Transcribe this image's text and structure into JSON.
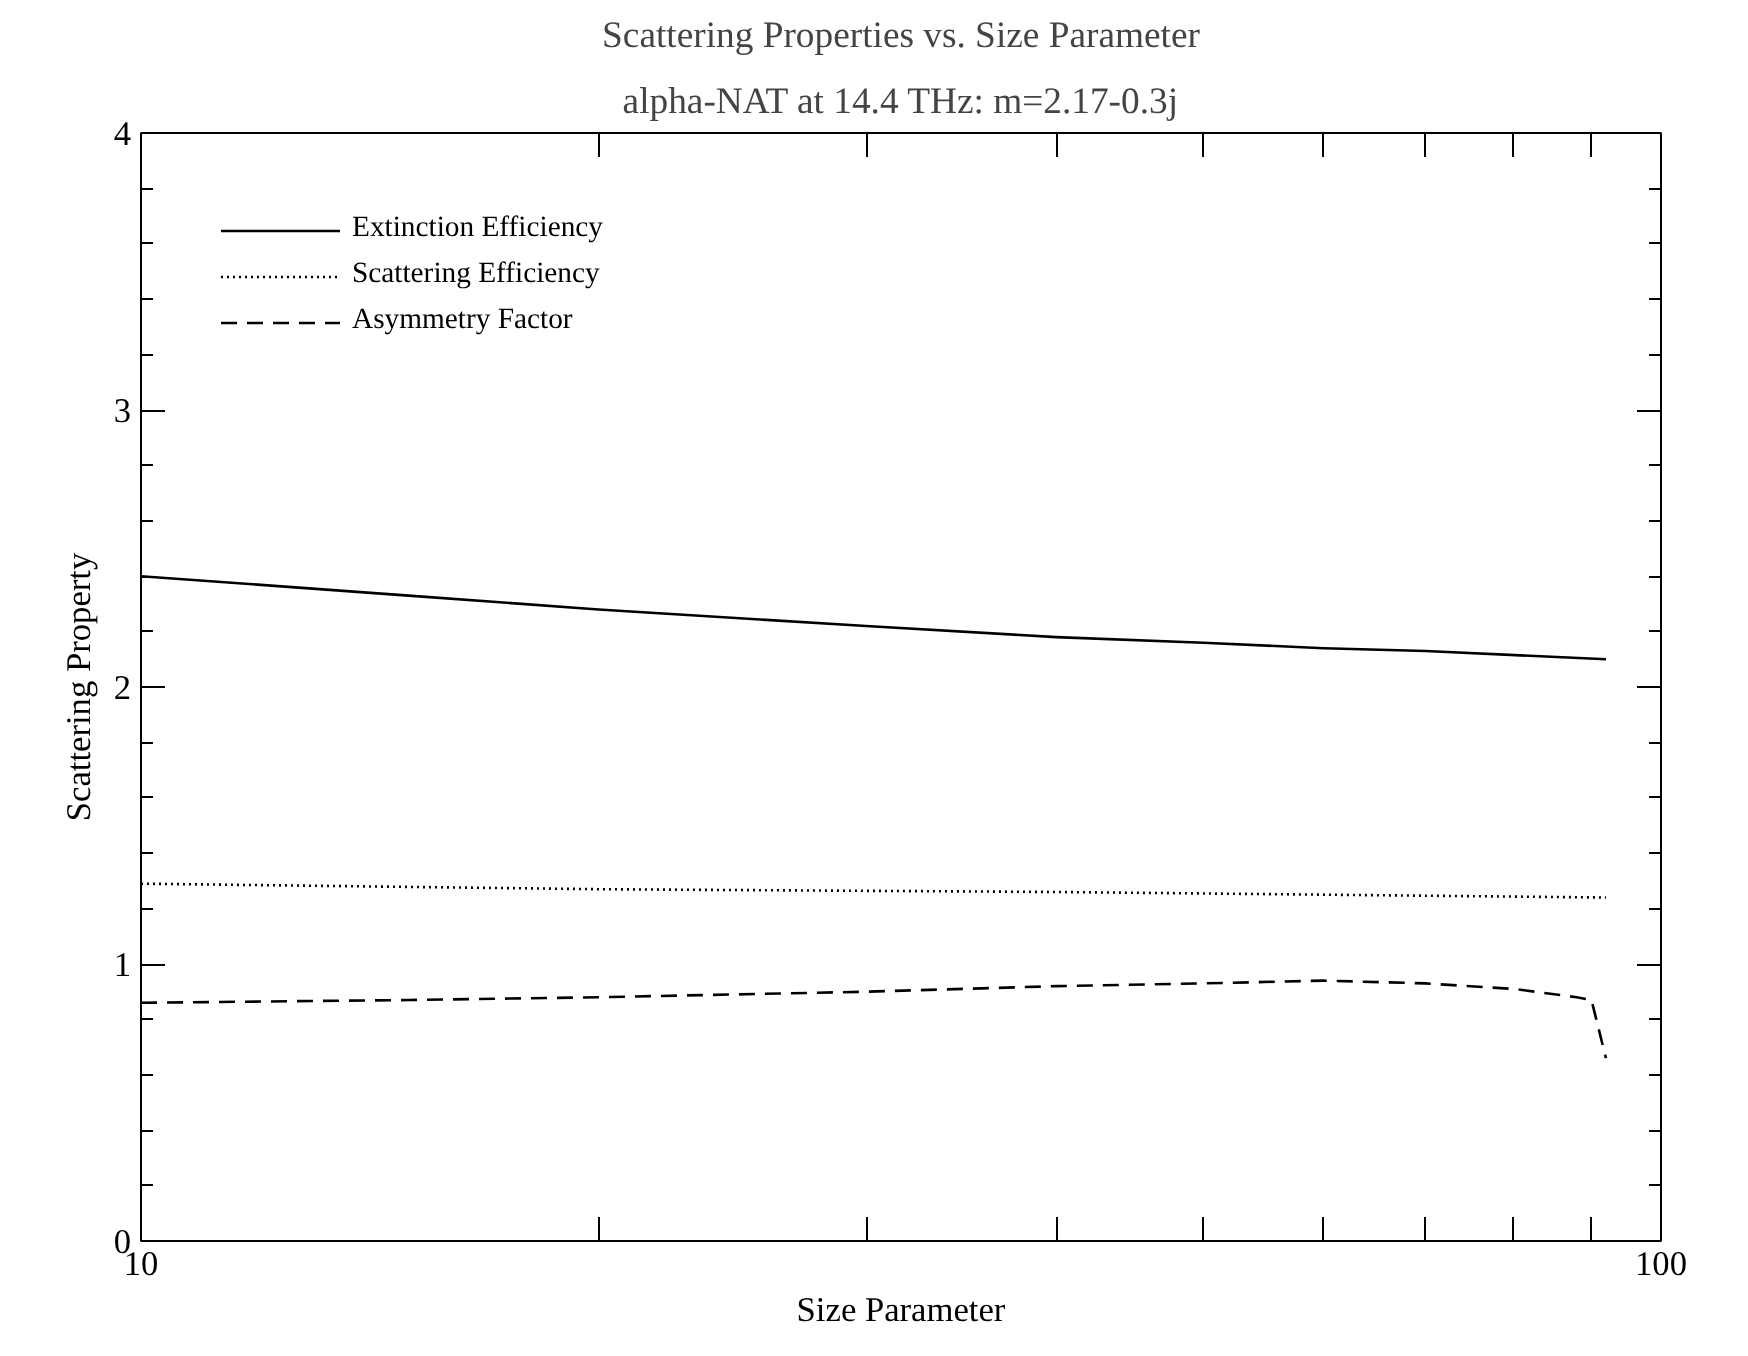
{
  "chart_data": {
    "type": "line",
    "title": "Scattering Properties vs. Size Parameter",
    "subtitle": "alpha-NAT at 14.4 THz: m=2.17-0.3j",
    "xlabel": "Size Parameter",
    "ylabel": "Scattering Property",
    "log": "x",
    "xlim": [
      10,
      100
    ],
    "ylim": [
      0,
      4
    ],
    "xticks": [
      10,
      {
        "value": 20,
        "label": null
      },
      {
        "value": 30,
        "label": null
      },
      {
        "value": 40,
        "label": null
      },
      {
        "value": 50,
        "label": null
      },
      {
        "value": 60,
        "label": null
      },
      {
        "value": 70,
        "label": null
      },
      {
        "value": 80,
        "label": null
      },
      {
        "value": 90,
        "label": null
      },
      100
    ],
    "yticks": [
      0,
      1,
      2,
      3,
      4
    ],
    "grid": false,
    "legend": "top left",
    "marker": "none",
    "series": [
      {
        "name": "Extinction Efficiency",
        "color": "#000000",
        "line_style": "solid",
        "x": [
          10,
          15,
          20,
          30,
          40,
          50,
          60,
          70,
          92
        ],
        "values": [
          2.4,
          2.33,
          2.28,
          2.22,
          2.18,
          2.16,
          2.14,
          2.13,
          2.1
        ]
      },
      {
        "name": "Scattering Efficiency",
        "color": "#000000",
        "line_style": "dotted",
        "x": [
          10,
          20,
          40,
          92
        ],
        "values": [
          1.29,
          1.27,
          1.26,
          1.24
        ]
      },
      {
        "name": "Asymmetry Factor",
        "color": "#000000",
        "line_style": "dashed",
        "x": [
          10,
          15,
          20,
          30,
          40,
          50,
          60,
          70,
          80,
          88,
          90,
          92
        ],
        "values": [
          0.86,
          0.87,
          0.88,
          0.9,
          0.92,
          0.93,
          0.94,
          0.93,
          0.91,
          0.88,
          0.87,
          0.66
        ]
      }
    ]
  }
}
